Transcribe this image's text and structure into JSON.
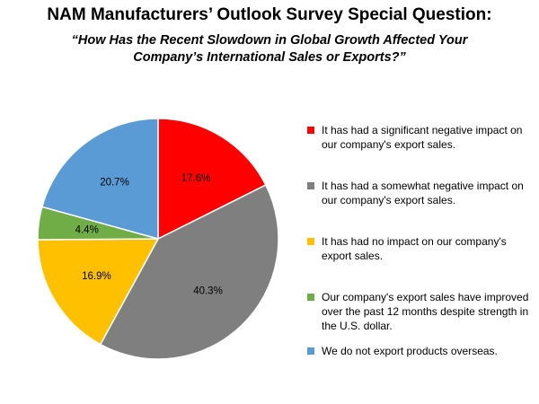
{
  "chart_data": {
    "type": "pie",
    "title": "NAM Manufacturers’ Outlook Survey Special Question:",
    "subtitle_lines": [
      "“How Has the Recent Slowdown in Global Growth Affected Your",
      "Company’s International Sales or Exports?”"
    ],
    "legend_position": "right",
    "slices": [
      {
        "label": "It has had a significant negative impact on our company's export sales.",
        "value": 17.6,
        "value_label": "17.6%",
        "color": "#ff0000"
      },
      {
        "label": "It has had a somewhat negative impact on our company's export sales.",
        "value": 40.3,
        "value_label": "40.3%",
        "color": "#7f7f7f"
      },
      {
        "label": "It has had no impact on our company's export sales.",
        "value": 16.9,
        "value_label": "16.9%",
        "color": "#ffc000"
      },
      {
        "label": "Our company's export sales have improved over the past 12 months despite strength in the U.S. dollar.",
        "value": 4.4,
        "value_label": "4.4%",
        "color": "#70ad47"
      },
      {
        "label": "We do not export products overseas.",
        "value": 20.7,
        "value_label": "20.7%",
        "color": "#5b9bd5"
      }
    ]
  }
}
